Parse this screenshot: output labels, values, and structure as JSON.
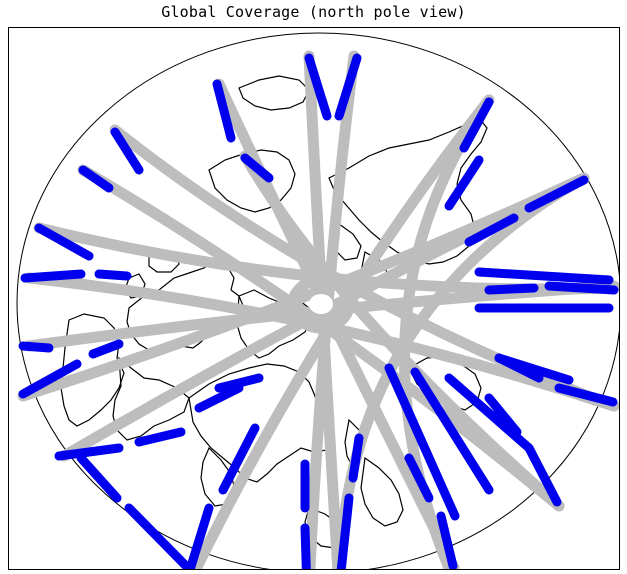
{
  "title": "Global Coverage (north pole view)",
  "projection": "orthographic north polar view",
  "colors": {
    "coverage_blue": "#0000ee",
    "coverage_gray": "#bdbdbd",
    "coastline": "#000000",
    "background": "#ffffff"
  }
}
